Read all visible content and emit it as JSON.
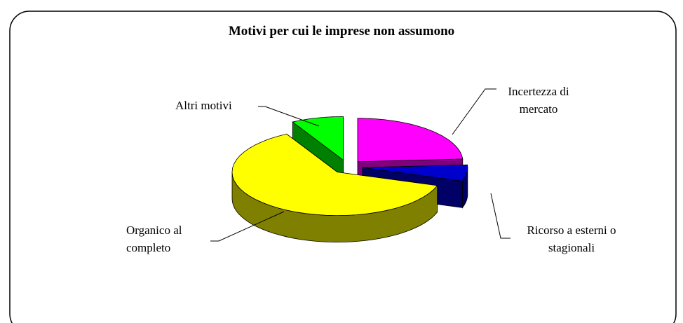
{
  "chart_data": {
    "type": "pie3d",
    "title": "Motivi per cui le imprese non assumono",
    "categories": [
      "Incertezza di mercato",
      "Ricorso a esterni o stagionali",
      "Organico al completo",
      "Altri motivi"
    ],
    "values": [
      24,
      6,
      62,
      8
    ],
    "colors": [
      "#ff00ff",
      "#0000cc",
      "#ffff00",
      "#00ff00"
    ]
  }
}
